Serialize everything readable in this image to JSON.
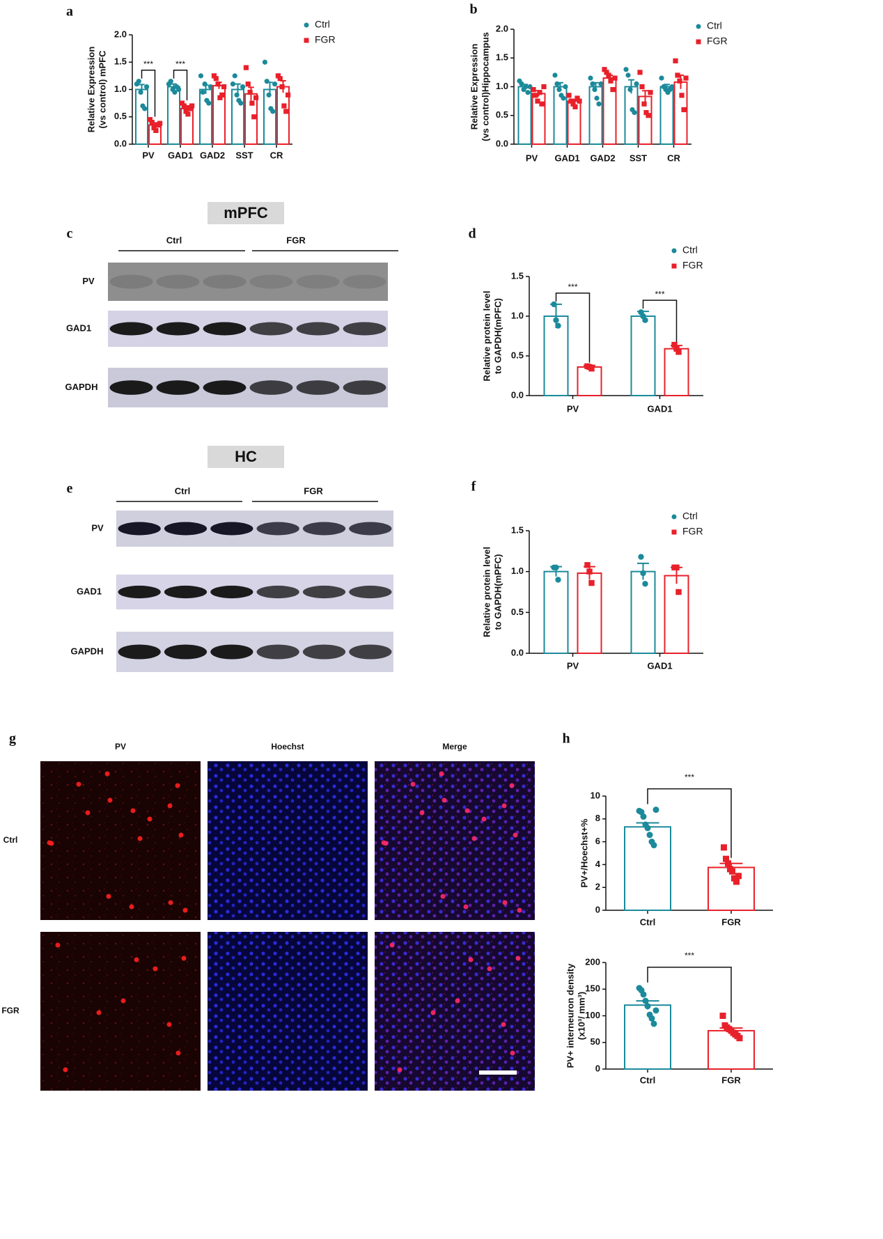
{
  "chart_data": [
    {
      "type": "bar",
      "panel": "a",
      "ylabel": [
        "Relative Expression",
        "(vs control) mPFC"
      ],
      "categories": [
        "PV",
        "GAD1",
        "GAD2",
        "SST",
        "CR"
      ],
      "series": [
        {
          "name": "Ctrl",
          "color": "#1b8a9a",
          "marker": "circle",
          "values": [
            1.0,
            1.05,
            1.0,
            1.0,
            1.0
          ],
          "errors": [
            0.09,
            0.05,
            0.08,
            0.1,
            0.13
          ],
          "points": [
            [
              1.1,
              1.15,
              0.95,
              0.7,
              0.65,
              1.05
            ],
            [
              1.1,
              1.15,
              1.0,
              0.95,
              1.05,
              1.0
            ],
            [
              1.25,
              0.95,
              1.1,
              0.8,
              0.75,
              1.05
            ],
            [
              1.1,
              1.25,
              0.9,
              0.8,
              0.75,
              1.05
            ],
            [
              1.5,
              1.15,
              0.9,
              0.65,
              0.6,
              1.1
            ]
          ]
        },
        {
          "name": "FGR",
          "color": "#e8202a",
          "marker": "square",
          "values": [
            0.35,
            0.65,
            1.07,
            0.92,
            1.05
          ],
          "errors": [
            0.04,
            0.05,
            0.06,
            0.12,
            0.11
          ],
          "points": [
            [
              0.45,
              0.4,
              0.3,
              0.25,
              0.35,
              0.38
            ],
            [
              0.75,
              0.7,
              0.6,
              0.55,
              0.65,
              0.7
            ],
            [
              1.25,
              1.2,
              1.1,
              0.85,
              0.9,
              1.05
            ],
            [
              1.4,
              1.1,
              0.95,
              0.75,
              0.5,
              0.85
            ],
            [
              1.25,
              1.2,
              1.05,
              0.7,
              0.6,
              0.9
            ]
          ]
        }
      ],
      "significance": [
        "***",
        "***",
        null,
        null,
        null
      ],
      "ylim": [
        0,
        2
      ],
      "yticks": [
        {
          "value": 0,
          "label": "0.0"
        },
        0.5,
        {
          "value": 1,
          "label": "1.0"
        },
        1.5,
        {
          "value": 2,
          "label": "2.0"
        }
      ],
      "legend": "right"
    },
    {
      "type": "bar",
      "panel": "b",
      "ylabel": [
        "Relative Expression",
        "(vs control)Hippocampus"
      ],
      "categories": [
        "PV",
        "GAD1",
        "GAD2",
        "SST",
        "CR"
      ],
      "series": [
        {
          "name": "Ctrl",
          "color": "#1b8a9a",
          "marker": "circle",
          "values": [
            1.0,
            1.0,
            1.0,
            1.0,
            1.0
          ],
          "errors": [
            0.04,
            0.07,
            0.07,
            0.12,
            0.04
          ],
          "points": [
            [
              1.1,
              1.05,
              0.95,
              1.0,
              0.9,
              1.0
            ],
            [
              1.2,
              1.05,
              0.95,
              0.85,
              0.8,
              1.0
            ],
            [
              1.15,
              1.05,
              0.95,
              0.8,
              0.7,
              1.05
            ],
            [
              1.3,
              1.2,
              0.95,
              0.6,
              0.55,
              1.05
            ],
            [
              1.15,
              1.0,
              0.95,
              0.9,
              0.95,
              1.0
            ]
          ]
        },
        {
          "name": "FGR",
          "color": "#e8202a",
          "marker": "square",
          "values": [
            0.88,
            0.75,
            1.15,
            0.83,
            1.08
          ],
          "errors": [
            0.05,
            0.03,
            0.05,
            0.1,
            0.12
          ],
          "points": [
            [
              0.95,
              0.85,
              0.75,
              0.9,
              0.7,
              1.0
            ],
            [
              0.85,
              0.75,
              0.7,
              0.65,
              0.8,
              0.75
            ],
            [
              1.3,
              1.25,
              1.2,
              1.1,
              0.95,
              1.15
            ],
            [
              1.25,
              1.0,
              0.7,
              0.55,
              0.5,
              0.9
            ],
            [
              1.45,
              1.2,
              1.1,
              0.85,
              0.6,
              1.15
            ]
          ]
        }
      ],
      "ylim": [
        0,
        2
      ],
      "yticks": [
        {
          "value": 0,
          "label": "0.0"
        },
        0.5,
        {
          "value": 1,
          "label": "1.0"
        },
        1.5,
        {
          "value": 2,
          "label": "2.0"
        }
      ],
      "legend": "right"
    },
    {
      "type": "bar",
      "panel": "d",
      "ylabel": [
        "Relative protein level",
        "to GAPDH(mPFC)"
      ],
      "categories": [
        "PV",
        "GAD1"
      ],
      "series": [
        {
          "name": "Ctrl",
          "color": "#1b8a9a",
          "marker": "circle",
          "values": [
            1.0,
            1.0
          ],
          "errors": [
            0.15,
            0.06
          ],
          "points": [
            [
              1.15,
              0.95,
              0.88
            ],
            [
              1.05,
              1.0,
              0.95
            ]
          ]
        },
        {
          "name": "FGR",
          "color": "#e8202a",
          "marker": "square",
          "values": [
            0.36,
            0.59
          ],
          "errors": [
            0.02,
            0.04
          ],
          "points": [
            [
              0.37,
              0.36,
              0.34
            ],
            [
              0.64,
              0.59,
              0.55
            ]
          ]
        }
      ],
      "significance": [
        "***",
        "***"
      ],
      "ylim": [
        0,
        1.5
      ],
      "yticks": [
        {
          "value": 0,
          "label": "0.0"
        },
        0.5,
        {
          "value": 1,
          "label": "1.0"
        },
        1.5
      ],
      "legend": "right"
    },
    {
      "type": "bar",
      "panel": "f",
      "ylabel": [
        "Relative protein level",
        "to GAPDH(mPFC)"
      ],
      "categories": [
        "PV",
        "GAD1"
      ],
      "series": [
        {
          "name": "Ctrl",
          "color": "#1b8a9a",
          "marker": "circle",
          "values": [
            1.0,
            1.0
          ],
          "errors": [
            0.06,
            0.1
          ],
          "points": [
            [
              1.05,
              1.05,
              0.9
            ],
            [
              1.18,
              0.98,
              0.85
            ]
          ]
        },
        {
          "name": "FGR",
          "color": "#e8202a",
          "marker": "square",
          "values": [
            0.98,
            0.95
          ],
          "errors": [
            0.08,
            0.1
          ],
          "points": [
            [
              1.08,
              1.0,
              0.86
            ],
            [
              1.05,
              1.05,
              0.75
            ]
          ]
        }
      ],
      "ylim": [
        0,
        1.5
      ],
      "yticks": [
        {
          "value": 0,
          "label": "0.0"
        },
        0.5,
        {
          "value": 1,
          "label": "1.0"
        },
        1.5
      ],
      "legend": "right"
    },
    {
      "type": "bar",
      "panel": "h",
      "ylabel": [
        "PV+/Hoechst+%"
      ],
      "categories": [
        "Ctrl",
        "FGR"
      ],
      "values": [
        7.3,
        3.75
      ],
      "errors": [
        0.35,
        0.35
      ],
      "colors": [
        "#1b8a9a",
        "#e8202a"
      ],
      "markers": [
        "circle",
        "square"
      ],
      "points": [
        [
          8.7,
          8.6,
          8.2,
          7.5,
          7.2,
          6.6,
          6.0,
          5.7,
          8.8
        ],
        [
          5.5,
          4.5,
          4.1,
          3.6,
          3.4,
          2.8,
          2.5,
          3.0
        ]
      ],
      "significance": "***",
      "ylim": [
        0,
        10
      ],
      "yticks": [
        0,
        2,
        4,
        6,
        8,
        10
      ]
    },
    {
      "type": "bar",
      "ylabel": [
        "PV+ interneuron density",
        "(x10³/ mm³)"
      ],
      "categories": [
        "Ctrl",
        "FGR"
      ],
      "values": [
        120,
        72
      ],
      "errors": [
        8,
        5
      ],
      "colors": [
        "#1b8a9a",
        "#e8202a"
      ],
      "markers": [
        "circle",
        "square"
      ],
      "points": [
        [
          152,
          148,
          140,
          128,
          118,
          102,
          95,
          85,
          110
        ],
        [
          100,
          82,
          78,
          75,
          72,
          68,
          65,
          62,
          58
        ]
      ],
      "significance": "***",
      "ylim": [
        0,
        200
      ],
      "yticks": [
        0,
        50,
        100,
        150,
        200
      ]
    }
  ],
  "figure": {
    "blots": [
      {
        "panel": "c",
        "region": "mPFC",
        "groups": [
          "Ctrl",
          "FGR"
        ],
        "rows": [
          "PV",
          "GAD1",
          "GAPDH"
        ]
      },
      {
        "panel": "e",
        "region": "HC",
        "groups": [
          "Ctrl",
          "FGR"
        ],
        "rows": [
          "PV",
          "GAD1",
          "GAPDH"
        ]
      }
    ],
    "images": {
      "panel": "g",
      "columns": [
        "PV",
        "Hoechst",
        "Merge"
      ],
      "rows": [
        "Ctrl",
        "FGR"
      ]
    }
  }
}
